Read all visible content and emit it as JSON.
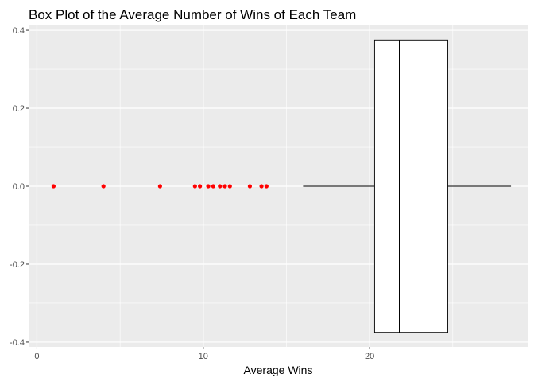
{
  "chart_data": {
    "type": "boxplot",
    "title": "Box Plot of the Average Number of Wins of Each Team",
    "xlabel": "Average Wins",
    "ylabel": "",
    "xlim": [
      -0.5,
      29.5
    ],
    "ylim": [
      -0.4,
      0.4
    ],
    "x_ticks": [
      {
        "value": 0,
        "label": "0"
      },
      {
        "value": 10,
        "label": "10"
      },
      {
        "value": 20,
        "label": "20"
      }
    ],
    "y_ticks": [
      {
        "value": 0.4,
        "label": "0.4"
      },
      {
        "value": 0.2,
        "label": "0.2"
      },
      {
        "value": 0.0,
        "label": "0.0"
      },
      {
        "value": -0.2,
        "label": "-0.2"
      },
      {
        "value": -0.4,
        "label": "-0.4"
      }
    ],
    "grid": true,
    "box": {
      "whisker_low": 16.0,
      "q1": 20.3,
      "median": 21.8,
      "q3": 24.7,
      "whisker_high": 28.5,
      "y_low": -0.375,
      "y_high": 0.375
    },
    "outliers": [
      1.0,
      4.0,
      7.4,
      9.5,
      9.8,
      10.3,
      10.6,
      11.0,
      11.3,
      11.6,
      12.8,
      13.5,
      13.8
    ],
    "colors": {
      "panel": "#ebebeb",
      "grid": "#ffffff",
      "outlier": "#ff0000",
      "box_fill": "#ffffff",
      "box_stroke": "#000000"
    }
  }
}
